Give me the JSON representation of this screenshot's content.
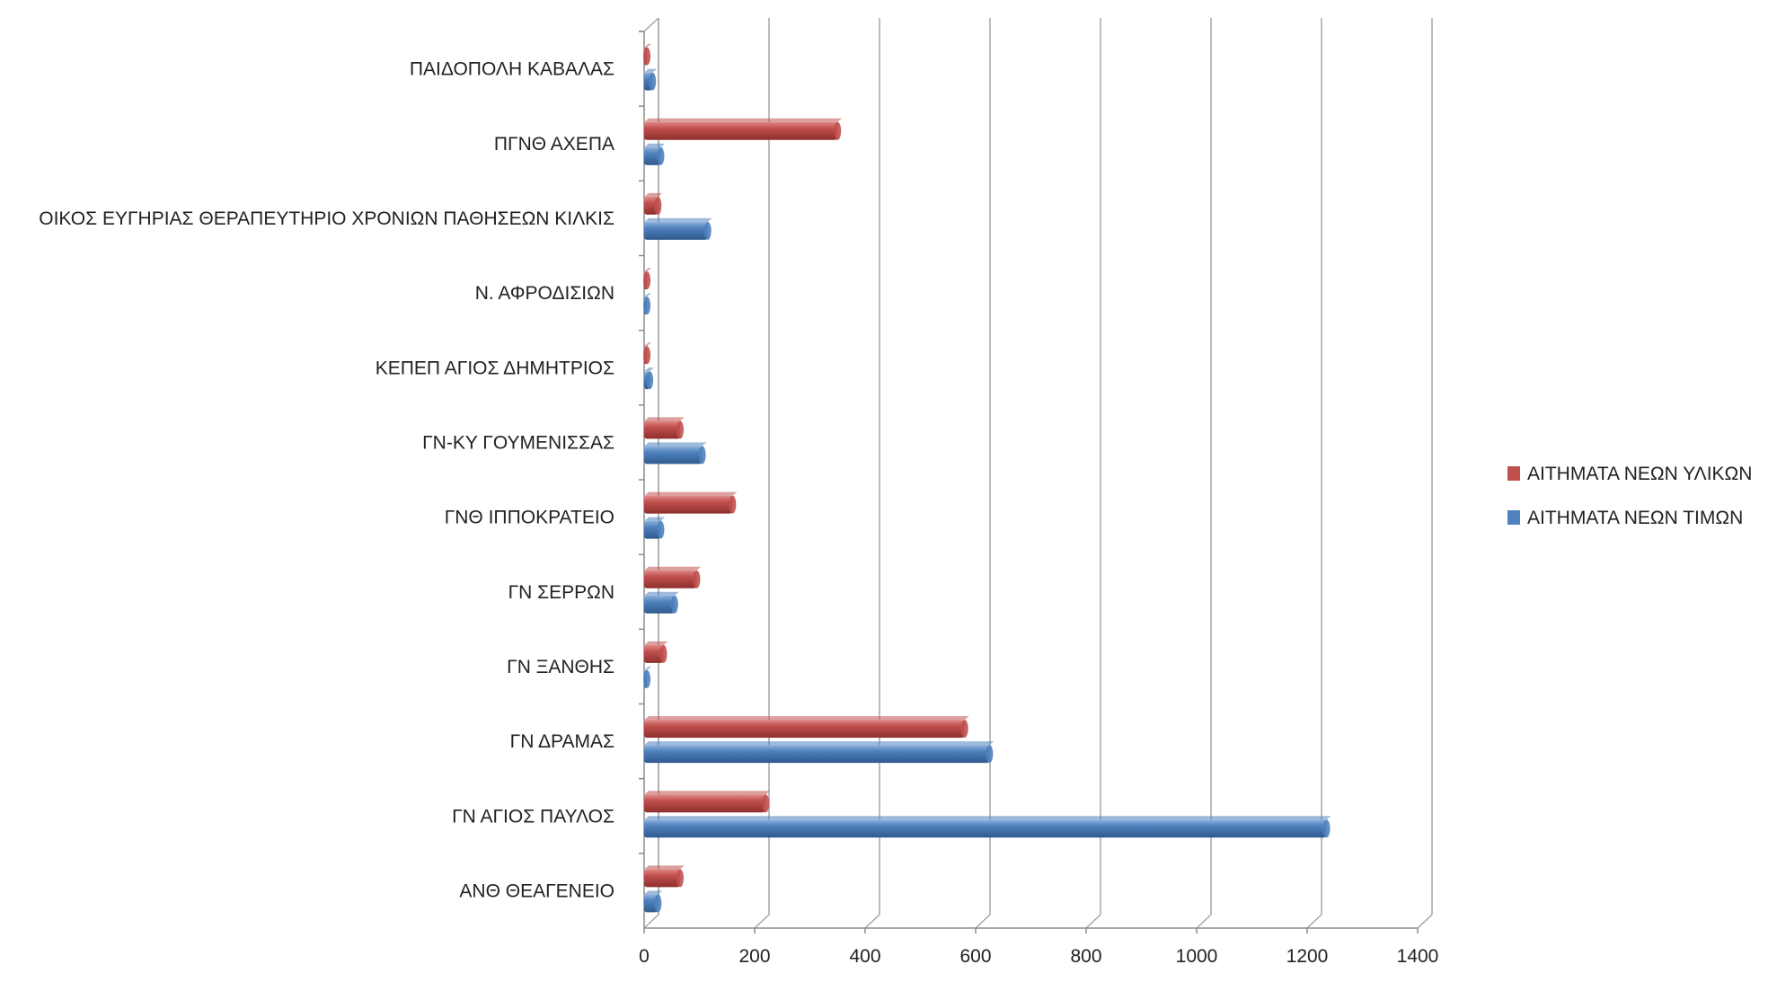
{
  "chart_data": {
    "type": "bar",
    "orientation": "horizontal",
    "categories": [
      "ΑΝΘ ΘΕΑΓΕΝΕΙΟ",
      "ΓΝ ΑΓΙΟΣ ΠΑΥΛΟΣ",
      "ΓΝ ΔΡΑΜΑΣ",
      "ΓΝ ΞΑΝΘΗΣ",
      "ΓΝ ΣΕΡΡΩΝ",
      "ΓΝΘ ΙΠΠΟΚΡΑΤΕΙΟ",
      "ΓΝ-ΚΥ ΓΟΥΜΕΝΙΣΣΑΣ",
      "ΚΕΠΕΠ ΑΓΙΟΣ ΔΗΜΗΤΡΙΟΣ",
      "Ν. ΑΦΡΟΔΙΣΙΩΝ",
      "ΟΙΚΟΣ ΕΥΓΗΡΙΑΣ   ΘΕΡΑΠΕΥΤΗΡΙΟ ΧΡΟΝΙΩΝ ΠΑΘΗΣΕΩΝ ΚΙΛΚΙΣ",
      "ΠΓΝΘ ΑΧΕΠΑ",
      "ΠΑΙΔΟΠΟΛΗ ΚΑΒΑΛΑΣ"
    ],
    "series": [
      {
        "name": "ΑΙΤΗΜΑΤΑ ΝΕΩΝ ΥΛΙΚΩΝ",
        "color": "#c0504d",
        "values": [
          65,
          220,
          580,
          35,
          95,
          160,
          65,
          5,
          5,
          25,
          350,
          5
        ]
      },
      {
        "name": "ΑΙΤΗΜΑΤΑ ΝΕΩΝ ΤΙΜΩΝ",
        "color": "#4f81bd",
        "values": [
          25,
          1235,
          625,
          5,
          55,
          30,
          105,
          10,
          5,
          115,
          30,
          15
        ]
      }
    ],
    "xlim": [
      0,
      1400
    ],
    "x_ticks": [
      "0",
      "200",
      "400",
      "600",
      "800",
      "1000",
      "1200",
      "1400"
    ],
    "grid": true,
    "legend_position": "right",
    "title": "",
    "xlabel": "",
    "ylabel": ""
  }
}
